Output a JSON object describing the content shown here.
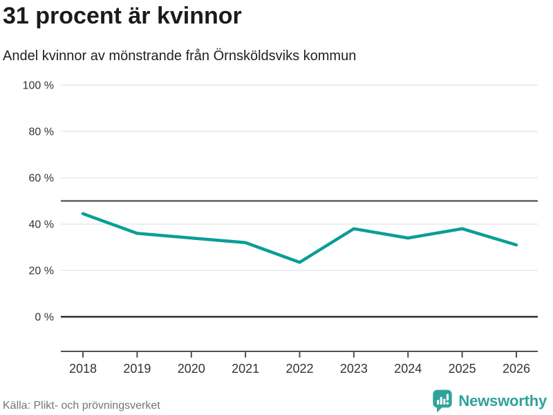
{
  "header": {
    "title": "31 procent är kvinnor",
    "subtitle": "Andel kvinnor av mönstrande från Örnsköldsviks kommun"
  },
  "footer": {
    "source": "Källa: Plikt- och prövningsverket",
    "brand": "Newsworthy",
    "brand_icon": "bar-chart-speech-bubble-icon"
  },
  "colors": {
    "line": "#0a9e96",
    "grid": "#e7e7e7",
    "reference_line": "#4f4f4f",
    "zero_line": "#2b2b2b",
    "axis": "#4f4f4f",
    "tick_label": "#333333",
    "brand_teal": "#2fa39a",
    "source_text": "#757575"
  },
  "chart_data": {
    "type": "line",
    "title": "31 procent är kvinnor",
    "subtitle": "Andel kvinnor av mönstrande från Örnsköldsviks kommun",
    "source": "Källa: Plikt- och prövningsverket",
    "x": [
      2018,
      2019,
      2020,
      2021,
      2022,
      2023,
      2024,
      2025,
      2026
    ],
    "series": [
      {
        "name": "Andel kvinnor av mönstrande",
        "values": [
          44.5,
          36,
          34,
          32,
          23.5,
          38,
          34,
          38,
          31
        ]
      }
    ],
    "unit": "%",
    "ylim": [
      0,
      100
    ],
    "y_ticks": [
      0,
      20,
      40,
      60,
      80,
      100
    ],
    "y_tick_suffix": " %",
    "reference_line": 50,
    "grid": "horizontal",
    "legend_position": "none"
  }
}
